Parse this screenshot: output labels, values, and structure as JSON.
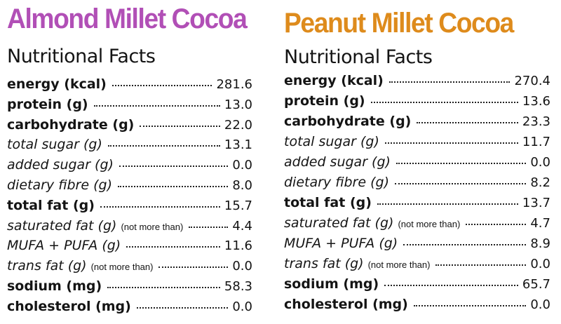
{
  "colors": {
    "left_title": "#b14fb6",
    "right_title": "#de8b1c",
    "text": "#141414"
  },
  "left": {
    "title": "Almond Millet Cocoa",
    "heading": "Nutritional Facts",
    "rows": [
      {
        "label": "energy (kcal)",
        "note": "",
        "value": "281.6",
        "style": "bold"
      },
      {
        "label": "protein (g)",
        "note": "",
        "value": "13.0",
        "style": "bold"
      },
      {
        "label": "carbohydrate (g)",
        "note": "",
        "value": "22.0",
        "style": "bold"
      },
      {
        "label": "total sugar (g)",
        "note": "",
        "value": "13.1",
        "style": "ital"
      },
      {
        "label": "added sugar (g)",
        "note": "",
        "value": "0.0",
        "style": "ital"
      },
      {
        "label": "dietary fibre (g)",
        "note": "",
        "value": "8.0",
        "style": "ital"
      },
      {
        "label": "total fat (g)",
        "note": "",
        "value": "15.7",
        "style": "bold"
      },
      {
        "label": "saturated fat (g)",
        "note": "(not more than)",
        "value": "4.4",
        "style": "ital"
      },
      {
        "label": "MUFA + PUFA (g)",
        "note": "",
        "value": "11.6",
        "style": "ital"
      },
      {
        "label": "trans fat (g)",
        "note": "(not more than)",
        "value": "0.0",
        "style": "ital"
      },
      {
        "label": "sodium (mg)",
        "note": "",
        "value": "58.3",
        "style": "bold"
      },
      {
        "label": "cholesterol (mg)",
        "note": "",
        "value": "0.0",
        "style": "bold"
      }
    ]
  },
  "right": {
    "title": "Peanut Millet Cocoa",
    "heading": "Nutritional Facts",
    "rows": [
      {
        "label": "energy (kcal)",
        "note": "",
        "value": "270.4",
        "style": "bold"
      },
      {
        "label": "protein (g)",
        "note": "",
        "value": "13.6",
        "style": "bold"
      },
      {
        "label": "carbohydrate (g)",
        "note": "",
        "value": "23.3",
        "style": "bold"
      },
      {
        "label": "total sugar (g)",
        "note": "",
        "value": "11.7",
        "style": "ital"
      },
      {
        "label": "added sugar (g)",
        "note": "",
        "value": "0.0",
        "style": "ital"
      },
      {
        "label": "dietary fibre (g)",
        "note": "",
        "value": "8.2",
        "style": "ital"
      },
      {
        "label": "total fat (g)",
        "note": "",
        "value": "13.7",
        "style": "bold"
      },
      {
        "label": "saturated fat (g)",
        "note": "(not more than)",
        "value": "4.7",
        "style": "ital"
      },
      {
        "label": "MUFA + PUFA (g)",
        "note": "",
        "value": "8.9",
        "style": "ital"
      },
      {
        "label": "trans fat (g)",
        "note": "(not more than)",
        "value": "0.0",
        "style": "ital"
      },
      {
        "label": "sodium (mg)",
        "note": "",
        "value": "65.7",
        "style": "bold"
      },
      {
        "label": "cholesterol (mg)",
        "note": "",
        "value": "0.0",
        "style": "bold"
      }
    ]
  }
}
